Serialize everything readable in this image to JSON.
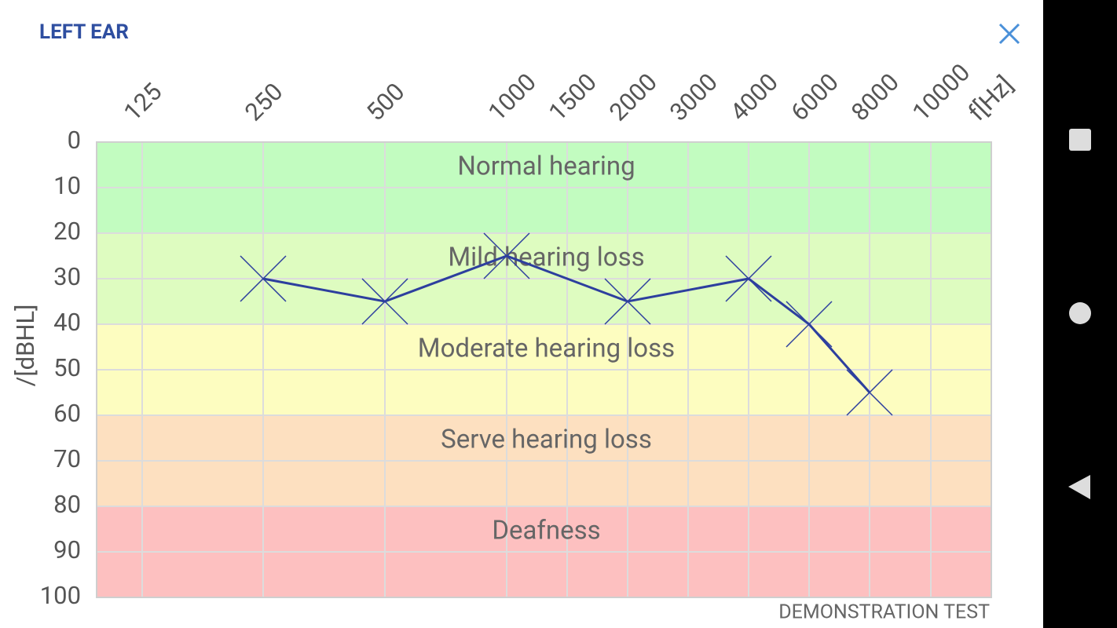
{
  "header": {
    "title": "LEFT EAR"
  },
  "chart_data": {
    "type": "line",
    "categories": [
      "125",
      "250",
      "500",
      "1000",
      "1500",
      "2000",
      "3000",
      "4000",
      "6000",
      "8000",
      "10000"
    ],
    "x_label": "f[Hz]",
    "y_label": "/[dBHL]",
    "ylim": [
      0,
      100
    ],
    "yticks": [
      0,
      10,
      20,
      30,
      40,
      50,
      60,
      70,
      80,
      90,
      100
    ],
    "grid": true,
    "bands": [
      {
        "label": "Normal hearing",
        "from": 0,
        "to": 20,
        "color": "#c2fcc0"
      },
      {
        "label": "Mild hearing loss",
        "from": 20,
        "to": 40,
        "color": "#defcc0"
      },
      {
        "label": "Moderate hearing loss",
        "from": 40,
        "to": 60,
        "color": "#fdfdc0"
      },
      {
        "label": "Serve hearing loss",
        "from": 60,
        "to": 80,
        "color": "#fde0c0"
      },
      {
        "label": "Deafness",
        "from": 80,
        "to": 100,
        "color": "#fdc0c0"
      }
    ],
    "series": [
      {
        "color": "#2d3f9e",
        "x": [
          "250",
          "500",
          "1000",
          "2000",
          "4000",
          "6000",
          "8000"
        ],
        "values": [
          30,
          35,
          25,
          35,
          30,
          40,
          55
        ]
      }
    ]
  },
  "footer": {
    "note": "DEMONSTRATION TEST"
  }
}
